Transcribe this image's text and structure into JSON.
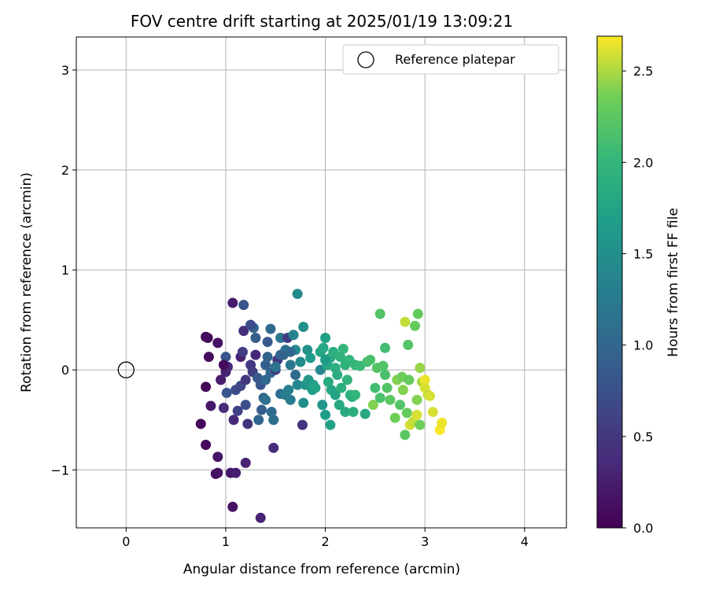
{
  "chart_data": {
    "type": "scatter",
    "title": "FOV centre drift starting at 2025/01/19 13:09:21",
    "xlabel": "Angular distance from reference (arcmin)",
    "ylabel": "Rotation from reference (arcmin)",
    "xlim": [
      -0.5,
      4.42
    ],
    "ylim": [
      -1.58,
      3.33
    ],
    "xticks": [
      0,
      1,
      2,
      3,
      4
    ],
    "xtick_labels": [
      "0",
      "1",
      "2",
      "3",
      "4"
    ],
    "yticks": [
      -1,
      0,
      1,
      2,
      3
    ],
    "ytick_labels": [
      "−1",
      "0",
      "1",
      "2",
      "3"
    ],
    "grid": true,
    "legend": {
      "label": "Reference platepar",
      "placement": "top-right"
    },
    "reference_point": {
      "x": 0,
      "y": 0
    },
    "colorbar": {
      "label": "Hours from first FF file",
      "range": [
        0.0,
        2.69
      ],
      "ticks": [
        0.0,
        0.5,
        1.0,
        1.5,
        2.0,
        2.5
      ],
      "tick_labels": [
        "0.0",
        "0.5",
        "1.0",
        "1.5",
        "2.0",
        "2.5"
      ],
      "colormap": "viridis"
    },
    "points": [
      [
        0.8,
        0.33,
        0.05
      ],
      [
        0.82,
        0.32,
        0.08
      ],
      [
        0.83,
        0.13,
        0.1
      ],
      [
        0.92,
        0.27,
        0.15
      ],
      [
        0.8,
        -0.17,
        0.05
      ],
      [
        0.75,
        -0.54,
        0.05
      ],
      [
        0.8,
        -0.75,
        0.07
      ],
      [
        0.85,
        -0.36,
        0.2
      ],
      [
        0.9,
        -1.04,
        0.12
      ],
      [
        0.92,
        -1.03,
        0.15
      ],
      [
        0.92,
        -0.87,
        0.18
      ],
      [
        0.95,
        -0.1,
        0.25
      ],
      [
        1.0,
        -0.02,
        0.3
      ],
      [
        1.02,
        0.03,
        0.35
      ],
      [
        1.05,
        -1.03,
        0.2
      ],
      [
        1.07,
        -1.37,
        0.15
      ],
      [
        1.1,
        -1.03,
        0.25
      ],
      [
        1.07,
        0.67,
        0.25
      ],
      [
        1.15,
        0.13,
        0.3
      ],
      [
        1.18,
        0.39,
        0.4
      ],
      [
        1.2,
        -0.93,
        0.3
      ],
      [
        1.3,
        0.15,
        0.35
      ],
      [
        1.35,
        -1.48,
        0.3
      ],
      [
        0.98,
        -0.38,
        0.4
      ],
      [
        1.0,
        0.13,
        0.8
      ],
      [
        1.01,
        -0.23,
        0.8
      ],
      [
        1.1,
        -0.2,
        0.7
      ],
      [
        1.12,
        -0.41,
        0.6
      ],
      [
        1.15,
        -0.16,
        0.65
      ],
      [
        1.17,
        0.18,
        0.55
      ],
      [
        1.2,
        -0.1,
        0.5
      ],
      [
        1.22,
        -0.54,
        0.45
      ],
      [
        1.25,
        0.05,
        0.5
      ],
      [
        1.27,
        -0.02,
        0.55
      ],
      [
        1.18,
        0.65,
        0.8
      ],
      [
        1.2,
        -0.35,
        0.75
      ],
      [
        1.28,
        0.42,
        0.95
      ],
      [
        1.3,
        0.32,
        0.9
      ],
      [
        1.32,
        -0.08,
        0.85
      ],
      [
        1.33,
        -0.5,
        1.0
      ],
      [
        1.35,
        -0.15,
        0.8
      ],
      [
        1.36,
        -0.4,
        0.9
      ],
      [
        1.38,
        -0.28,
        0.95
      ],
      [
        1.4,
        0.05,
        0.9
      ],
      [
        1.4,
        -0.1,
        1.0
      ],
      [
        1.42,
        0.28,
        0.85
      ],
      [
        1.42,
        0.13,
        0.95
      ],
      [
        1.45,
        0.41,
        1.05
      ],
      [
        1.45,
        -0.03,
        1.0
      ],
      [
        1.46,
        -0.42,
        1.05
      ],
      [
        1.48,
        -0.5,
        1.1
      ],
      [
        1.48,
        -0.78,
        0.4
      ],
      [
        1.5,
        0.0,
        0.6
      ],
      [
        1.52,
        0.1,
        0.5
      ],
      [
        1.55,
        0.32,
        1.2
      ],
      [
        1.55,
        -0.24,
        1.1
      ],
      [
        1.58,
        0.15,
        1.05
      ],
      [
        1.6,
        0.2,
        1.15
      ],
      [
        1.6,
        -0.25,
        1.25
      ],
      [
        1.62,
        0.32,
        0.55
      ],
      [
        1.63,
        -0.2,
        1.3
      ],
      [
        1.65,
        0.05,
        1.2
      ],
      [
        1.65,
        -0.3,
        1.25
      ],
      [
        1.68,
        0.35,
        1.35
      ],
      [
        1.7,
        0.2,
        1.4
      ],
      [
        1.72,
        0.76,
        1.45
      ],
      [
        1.72,
        -0.15,
        1.4
      ],
      [
        1.75,
        0.08,
        1.45
      ],
      [
        1.77,
        -0.55,
        0.45
      ],
      [
        1.78,
        0.43,
        1.5
      ],
      [
        1.78,
        -0.33,
        1.5
      ],
      [
        1.8,
        -0.15,
        1.55
      ],
      [
        1.82,
        0.2,
        1.55
      ],
      [
        1.83,
        -0.1,
        1.6
      ],
      [
        1.85,
        0.12,
        1.65
      ],
      [
        1.87,
        -0.2,
        1.7
      ],
      [
        1.88,
        -0.15,
        1.7
      ],
      [
        1.9,
        -0.18,
        1.75
      ],
      [
        1.95,
        0.0,
        1.4
      ],
      [
        1.95,
        0.18,
        1.75
      ],
      [
        1.97,
        -0.35,
        1.6
      ],
      [
        1.98,
        0.22,
        1.8
      ],
      [
        2.0,
        -0.45,
        1.7
      ],
      [
        2.0,
        0.32,
        1.7
      ],
      [
        2.02,
        0.05,
        1.8
      ],
      [
        2.03,
        -0.12,
        1.85
      ],
      [
        2.05,
        -0.55,
        1.75
      ],
      [
        2.05,
        0.12,
        1.85
      ],
      [
        2.06,
        -0.2,
        1.8
      ],
      [
        2.08,
        0.18,
        1.9
      ],
      [
        2.1,
        -0.25,
        1.75
      ],
      [
        2.1,
        0.02,
        1.9
      ],
      [
        2.12,
        -0.05,
        1.85
      ],
      [
        2.14,
        -0.35,
        1.8
      ],
      [
        2.15,
        0.13,
        1.95
      ],
      [
        2.16,
        -0.18,
        1.9
      ],
      [
        2.18,
        0.21,
        2.0
      ],
      [
        2.2,
        -0.42,
        1.85
      ],
      [
        2.2,
        0.05,
        1.95
      ],
      [
        2.22,
        -0.1,
        1.95
      ],
      [
        2.24,
        0.1,
        2.0
      ],
      [
        2.25,
        -0.25,
        1.95
      ],
      [
        2.27,
        -0.27,
        1.9
      ],
      [
        2.28,
        -0.42,
        1.9
      ],
      [
        2.3,
        0.05,
        2.0
      ],
      [
        2.3,
        -0.25,
        2.0
      ],
      [
        2.35,
        0.04,
        2.05
      ],
      [
        2.4,
        -0.44,
        1.8
      ],
      [
        2.42,
        0.08,
        2.1
      ],
      [
        2.45,
        0.1,
        2.15
      ],
      [
        2.48,
        -0.35,
        2.4
      ],
      [
        2.5,
        -0.18,
        2.1
      ],
      [
        2.52,
        0.02,
        2.2
      ],
      [
        2.55,
        -0.28,
        2.15
      ],
      [
        2.55,
        0.56,
        2.2
      ],
      [
        2.58,
        0.04,
        2.2
      ],
      [
        2.6,
        -0.05,
        2.15
      ],
      [
        2.6,
        0.22,
        2.1
      ],
      [
        2.62,
        -0.18,
        2.2
      ],
      [
        2.65,
        -0.3,
        2.25
      ],
      [
        2.7,
        -0.48,
        2.35
      ],
      [
        2.72,
        -0.1,
        2.4
      ],
      [
        2.75,
        -0.35,
        2.2
      ],
      [
        2.77,
        -0.07,
        2.35
      ],
      [
        2.78,
        -0.2,
        2.4
      ],
      [
        2.8,
        0.48,
        2.55
      ],
      [
        2.8,
        -0.65,
        2.25
      ],
      [
        2.82,
        -0.43,
        2.3
      ],
      [
        2.83,
        0.25,
        2.2
      ],
      [
        2.84,
        -0.1,
        2.3
      ],
      [
        2.85,
        -0.55,
        2.6
      ],
      [
        2.88,
        -0.52,
        2.55
      ],
      [
        2.9,
        0.44,
        2.3
      ],
      [
        2.92,
        -0.3,
        2.4
      ],
      [
        2.92,
        -0.45,
        2.6
      ],
      [
        2.93,
        0.56,
        2.3
      ],
      [
        2.95,
        0.02,
        2.45
      ],
      [
        2.95,
        -0.55,
        2.35
      ],
      [
        2.97,
        -0.12,
        2.5
      ],
      [
        3.0,
        -0.1,
        2.65
      ],
      [
        3.0,
        -0.18,
        2.6
      ],
      [
        3.03,
        -0.25,
        2.55
      ],
      [
        3.05,
        -0.26,
        2.6
      ],
      [
        3.08,
        -0.42,
        2.6
      ],
      [
        3.15,
        -0.6,
        2.68
      ],
      [
        3.17,
        -0.53,
        2.65
      ],
      [
        0.98,
        0.05,
        0.1
      ],
      [
        1.55,
        0.15,
        0.95
      ],
      [
        1.65,
        0.18,
        1.0
      ],
      [
        1.7,
        -0.05,
        1.05
      ],
      [
        1.4,
        -0.3,
        1.1
      ],
      [
        1.5,
        0.03,
        1.15
      ],
      [
        1.25,
        0.45,
        0.7
      ],
      [
        1.08,
        -0.5,
        0.35
      ],
      [
        2.0,
        0.1,
        1.65
      ]
    ]
  }
}
